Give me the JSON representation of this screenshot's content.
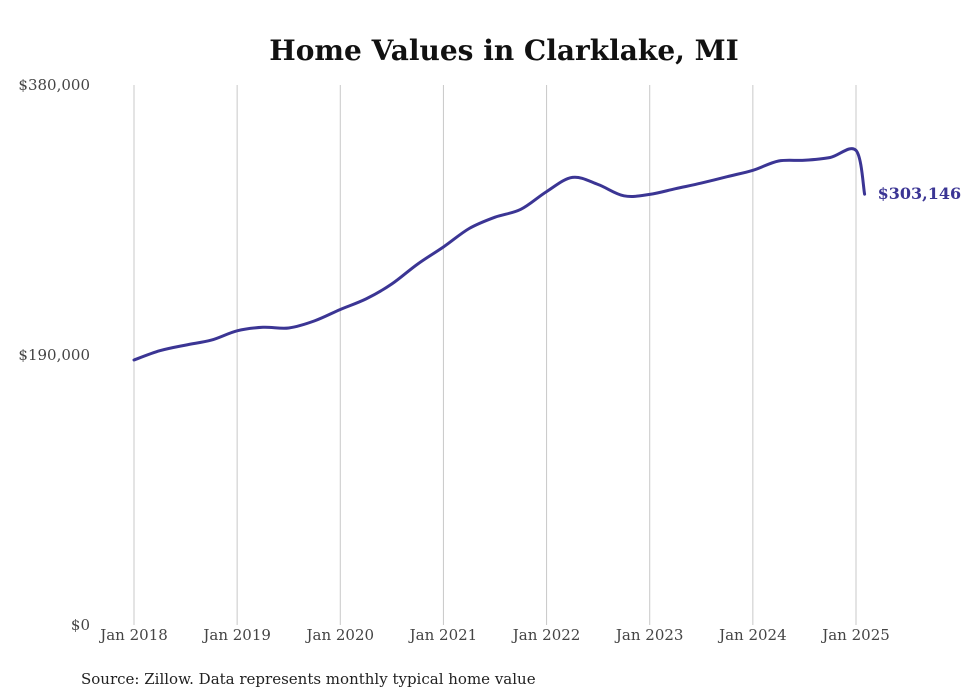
{
  "chart_data": {
    "type": "line",
    "title": "Home Values in Clarklake, MI",
    "xlabel": "",
    "ylabel": "",
    "ylim": [
      0,
      380000
    ],
    "y_ticks": [
      {
        "value": 0,
        "label": "$0"
      },
      {
        "value": 190000,
        "label": "$190,000"
      },
      {
        "value": 380000,
        "label": "$380,000"
      }
    ],
    "x_ticks": [
      {
        "value": "2018-01",
        "label": "Jan 2018"
      },
      {
        "value": "2019-01",
        "label": "Jan 2019"
      },
      {
        "value": "2020-01",
        "label": "Jan 2020"
      },
      {
        "value": "2021-01",
        "label": "Jan 2021"
      },
      {
        "value": "2022-01",
        "label": "Jan 2022"
      },
      {
        "value": "2023-01",
        "label": "Jan 2023"
      },
      {
        "value": "2024-01",
        "label": "Jan 2024"
      },
      {
        "value": "2025-01",
        "label": "Jan 2025"
      }
    ],
    "grid": {
      "vertical": true,
      "horizontal": false
    },
    "series": [
      {
        "color": "#3b3594",
        "x": [
          "2018-01",
          "2018-04",
          "2018-07",
          "2018-10",
          "2019-01",
          "2019-04",
          "2019-07",
          "2019-10",
          "2020-01",
          "2020-04",
          "2020-07",
          "2020-10",
          "2021-01",
          "2021-04",
          "2021-07",
          "2021-10",
          "2022-01",
          "2022-04",
          "2022-07",
          "2022-10",
          "2023-01",
          "2023-04",
          "2023-07",
          "2023-10",
          "2024-01",
          "2024-04",
          "2024-07",
          "2024-10",
          "2025-01",
          "2025-02"
        ],
        "y": [
          186500,
          193000,
          197000,
          200500,
          207000,
          209500,
          209000,
          214000,
          222000,
          229500,
          240000,
          254000,
          266000,
          279000,
          287000,
          292500,
          305000,
          315000,
          310000,
          302000,
          303000,
          307000,
          311000,
          315500,
          320000,
          326500,
          327000,
          329000,
          334000,
          303146
        ],
        "end_label": "$303,146"
      }
    ]
  },
  "source": "Source: Zillow. Data represents monthly typical home value"
}
